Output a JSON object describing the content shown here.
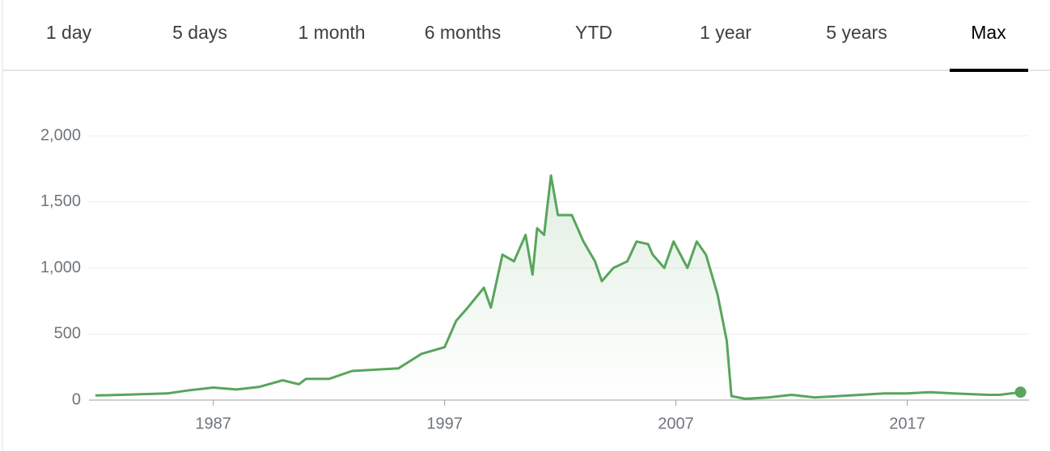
{
  "tabs": [
    "1 day",
    "5 days",
    "1 month",
    "6 months",
    "YTD",
    "1 year",
    "5 years",
    "Max"
  ],
  "active_tab": 7,
  "chart_data": {
    "type": "line",
    "color": "#58a55c",
    "grid": true,
    "x": [
      1981.9,
      1983,
      1984,
      1985,
      1986,
      1987,
      1988,
      1989,
      1990,
      1990.7,
      1991,
      1992,
      1993,
      1994,
      1995,
      1996,
      1997,
      1997.5,
      1998,
      1998.7,
      1999,
      1999.5,
      2000,
      2000.5,
      2000.8,
      2001,
      2001.3,
      2001.6,
      2001.9,
      2002.5,
      2003,
      2003.5,
      2003.8,
      2004.3,
      2004.9,
      2005.3,
      2005.8,
      2006,
      2006.5,
      2006.9,
      2007.5,
      2007.9,
      2008.3,
      2008.8,
      2009.2,
      2009.4,
      2010,
      2011,
      2012,
      2013,
      2014,
      2016,
      2017,
      2018,
      2019,
      2020.5,
      2021,
      2021.9
    ],
    "values": [
      35,
      40,
      45,
      50,
      75,
      95,
      80,
      100,
      150,
      120,
      160,
      160,
      220,
      230,
      240,
      350,
      400,
      600,
      700,
      850,
      700,
      1100,
      1050,
      1250,
      950,
      1300,
      1250,
      1700,
      1400,
      1400,
      1200,
      1050,
      900,
      1000,
      1050,
      1200,
      1180,
      1100,
      1000,
      1200,
      1000,
      1200,
      1100,
      800,
      450,
      30,
      10,
      20,
      40,
      20,
      30,
      50,
      50,
      60,
      50,
      40,
      40,
      60
    ],
    "xlim": [
      1981.8,
      2021.95
    ],
    "xticks": [
      1987,
      1997,
      2007,
      2017
    ],
    "ylim": [
      0,
      2000
    ],
    "yticks": [
      0,
      500,
      {
        "value": 1000,
        "label": "1,000"
      },
      {
        "value": 1500,
        "label": "1,500"
      },
      {
        "value": 2000,
        "label": "2,000"
      }
    ]
  }
}
